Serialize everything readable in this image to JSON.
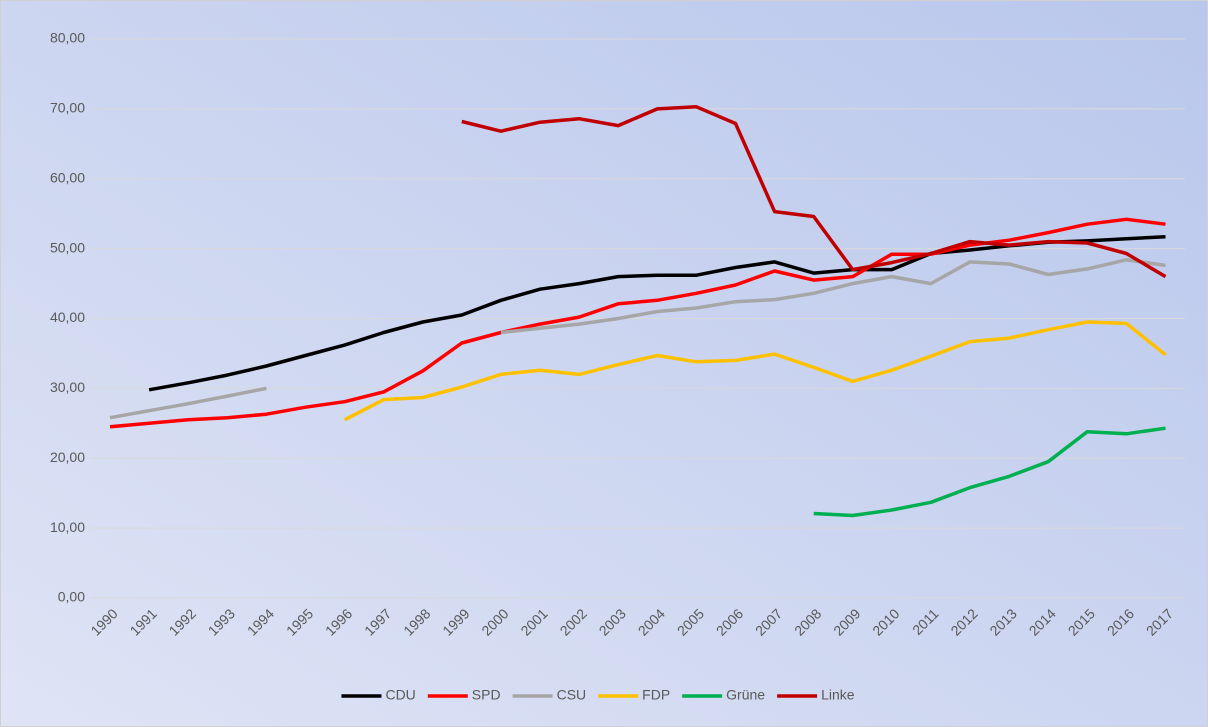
{
  "chart_data": {
    "type": "line",
    "categories": [
      "1990",
      "1991",
      "1992",
      "1993",
      "1994",
      "1995",
      "1996",
      "1997",
      "1998",
      "1999",
      "2000",
      "2001",
      "2002",
      "2003",
      "2004",
      "2005",
      "2006",
      "2007",
      "2008",
      "2009",
      "2010",
      "2011",
      "2012",
      "2013",
      "2014",
      "2015",
      "2016",
      "2017"
    ],
    "series": [
      {
        "name": "CDU",
        "color": "#000000",
        "values": [
          null,
          29.8,
          30.8,
          31.9,
          33.2,
          34.7,
          36.2,
          38.0,
          39.5,
          40.5,
          42.6,
          44.2,
          45.0,
          46.0,
          46.2,
          46.2,
          47.3,
          48.1,
          46.5,
          47.0,
          47.0,
          49.3,
          49.8,
          50.4,
          50.9,
          51.1,
          51.4,
          51.7
        ]
      },
      {
        "name": "SPD",
        "color": "#ff0000",
        "values": [
          24.5,
          25.0,
          25.5,
          25.8,
          26.3,
          27.3,
          28.1,
          29.5,
          32.5,
          36.5,
          38.0,
          39.2,
          40.2,
          42.1,
          42.6,
          43.6,
          44.8,
          46.8,
          45.5,
          46.0,
          49.2,
          49.2,
          50.5,
          51.2,
          52.3,
          53.5,
          54.2,
          53.5
        ]
      },
      {
        "name": "CSU",
        "color": "#a6a6a6",
        "values": [
          25.8,
          26.8,
          27.8,
          28.9,
          30.0,
          null,
          null,
          null,
          null,
          null,
          38.0,
          38.6,
          39.2,
          40.0,
          41.0,
          41.5,
          42.4,
          42.7,
          43.6,
          45.0,
          46.0,
          45.0,
          48.1,
          47.8,
          46.3,
          47.1,
          48.4,
          47.6
        ]
      },
      {
        "name": "FDP",
        "color": "#ffc000",
        "values": [
          null,
          null,
          null,
          null,
          null,
          null,
          25.5,
          28.4,
          28.7,
          30.2,
          32.0,
          32.6,
          32.0,
          33.4,
          34.7,
          33.8,
          34.0,
          34.9,
          33.0,
          31.0,
          32.6,
          34.6,
          36.7,
          37.2,
          38.4,
          39.5,
          39.3,
          34.8
        ]
      },
      {
        "name": "Grüne",
        "color": "#00b050",
        "values": [
          null,
          null,
          null,
          null,
          null,
          null,
          null,
          null,
          null,
          null,
          null,
          null,
          null,
          null,
          null,
          null,
          null,
          null,
          12.1,
          11.8,
          12.6,
          13.7,
          15.8,
          17.4,
          19.5,
          23.8,
          23.5,
          24.3
        ]
      },
      {
        "name": "Linke",
        "color": "#c00000",
        "values": [
          null,
          null,
          null,
          null,
          null,
          null,
          null,
          null,
          null,
          68.2,
          66.8,
          68.1,
          68.6,
          67.6,
          70.0,
          70.3,
          67.9,
          55.3,
          54.6,
          47.0,
          48.0,
          49.3,
          51.0,
          50.5,
          51.0,
          50.8,
          49.3,
          46.0
        ]
      }
    ],
    "ylim": [
      0,
      80
    ],
    "yticks": [
      {
        "value": 0,
        "label": "0,00"
      },
      {
        "value": 10,
        "label": "10,00"
      },
      {
        "value": 20,
        "label": "20,00"
      },
      {
        "value": 30,
        "label": "30,00"
      },
      {
        "value": 40,
        "label": "40,00"
      },
      {
        "value": 50,
        "label": "50,00"
      },
      {
        "value": 60,
        "label": "60,00"
      },
      {
        "value": 70,
        "label": "70,00"
      },
      {
        "value": 80,
        "label": "80,00"
      }
    ],
    "grid": true,
    "legend": "bottom"
  }
}
